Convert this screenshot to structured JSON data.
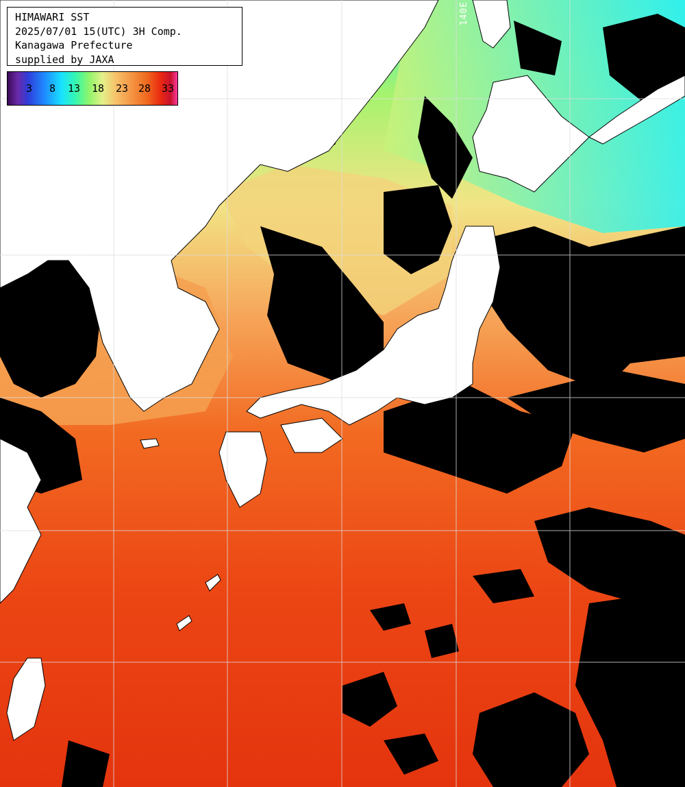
{
  "header": {
    "line1": "HIMAWARI SST",
    "line2": "2025/07/01 15(UTC) 3H Comp.",
    "line3": "Kanagawa Prefecture",
    "line4": "supplied by JAXA"
  },
  "legend": {
    "ticks": [
      "3",
      "8",
      "13",
      "18",
      "23",
      "28",
      "33"
    ]
  },
  "grid": {
    "longitude_label": "140E"
  },
  "colors": {
    "land": "#ffffff",
    "cloud": "#000000",
    "grid_line": "#dddddd",
    "sst_cold": "#19e3ff",
    "sst_cool": "#8ff56a",
    "sst_mild": "#f4e282",
    "sst_warm": "#f6a04c",
    "sst_hot": "#f05a14",
    "sst_very_hot": "#e63a10"
  }
}
